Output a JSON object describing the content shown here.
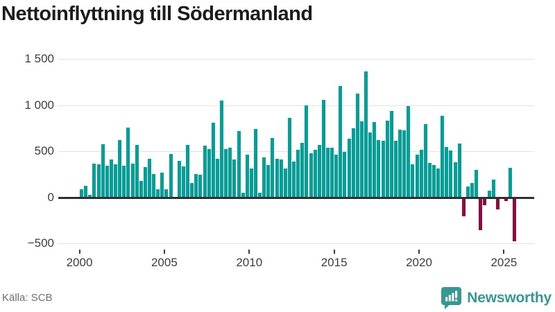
{
  "title": "Nettoinflyttning till Södermanland",
  "source": "Källa: SCB",
  "branding": {
    "name": "Newsworthy",
    "icon": "bar-chart-speech-bubble-icon"
  },
  "colors": {
    "positive": "#00a099",
    "negative": "#8c0c3e",
    "grid": "#e2e2e2",
    "zero_line": "#2f2f2f",
    "axis_text": "#3d3d3d",
    "title_text": "#1c1c1c",
    "source_text": "#6e6e6e",
    "brand": "#379792"
  },
  "chart_data": {
    "type": "bar",
    "title": "Nettoinflyttning till Södermanland",
    "x_start": "2000 Q1",
    "x_freq": "quarterly",
    "x_ticks": [
      2000,
      2005,
      2010,
      2015,
      2020,
      2025
    ],
    "y_ticks": [
      1500,
      1000,
      500,
      0,
      -500
    ],
    "y_tick_labels": [
      "1 500",
      "1 000",
      "500",
      "0",
      "−500"
    ],
    "ylim": [
      -500,
      1500
    ],
    "grid": true,
    "values": [
      85,
      125,
      25,
      365,
      357,
      578,
      340,
      410,
      355,
      620,
      345,
      756,
      365,
      565,
      180,
      330,
      415,
      255,
      85,
      265,
      85,
      467,
      0,
      396,
      331,
      565,
      157,
      249,
      241,
      560,
      522,
      806,
      415,
      1048,
      525,
      540,
      410,
      719,
      50,
      465,
      312,
      744,
      50,
      432,
      347,
      643,
      417,
      410,
      309,
      862,
      384,
      518,
      590,
      995,
      478,
      515,
      565,
      1055,
      535,
      535,
      460,
      1206,
      495,
      636,
      749,
      1126,
      824,
      1364,
      705,
      815,
      624,
      611,
      830,
      939,
      616,
      732,
      725,
      990,
      359,
      460,
      515,
      795,
      371,
      348,
      310,
      884,
      548,
      510,
      379,
      581,
      -210,
      114,
      157,
      295,
      -354,
      -88,
      68,
      189,
      -131,
      0,
      -45,
      316,
      -480
    ]
  }
}
